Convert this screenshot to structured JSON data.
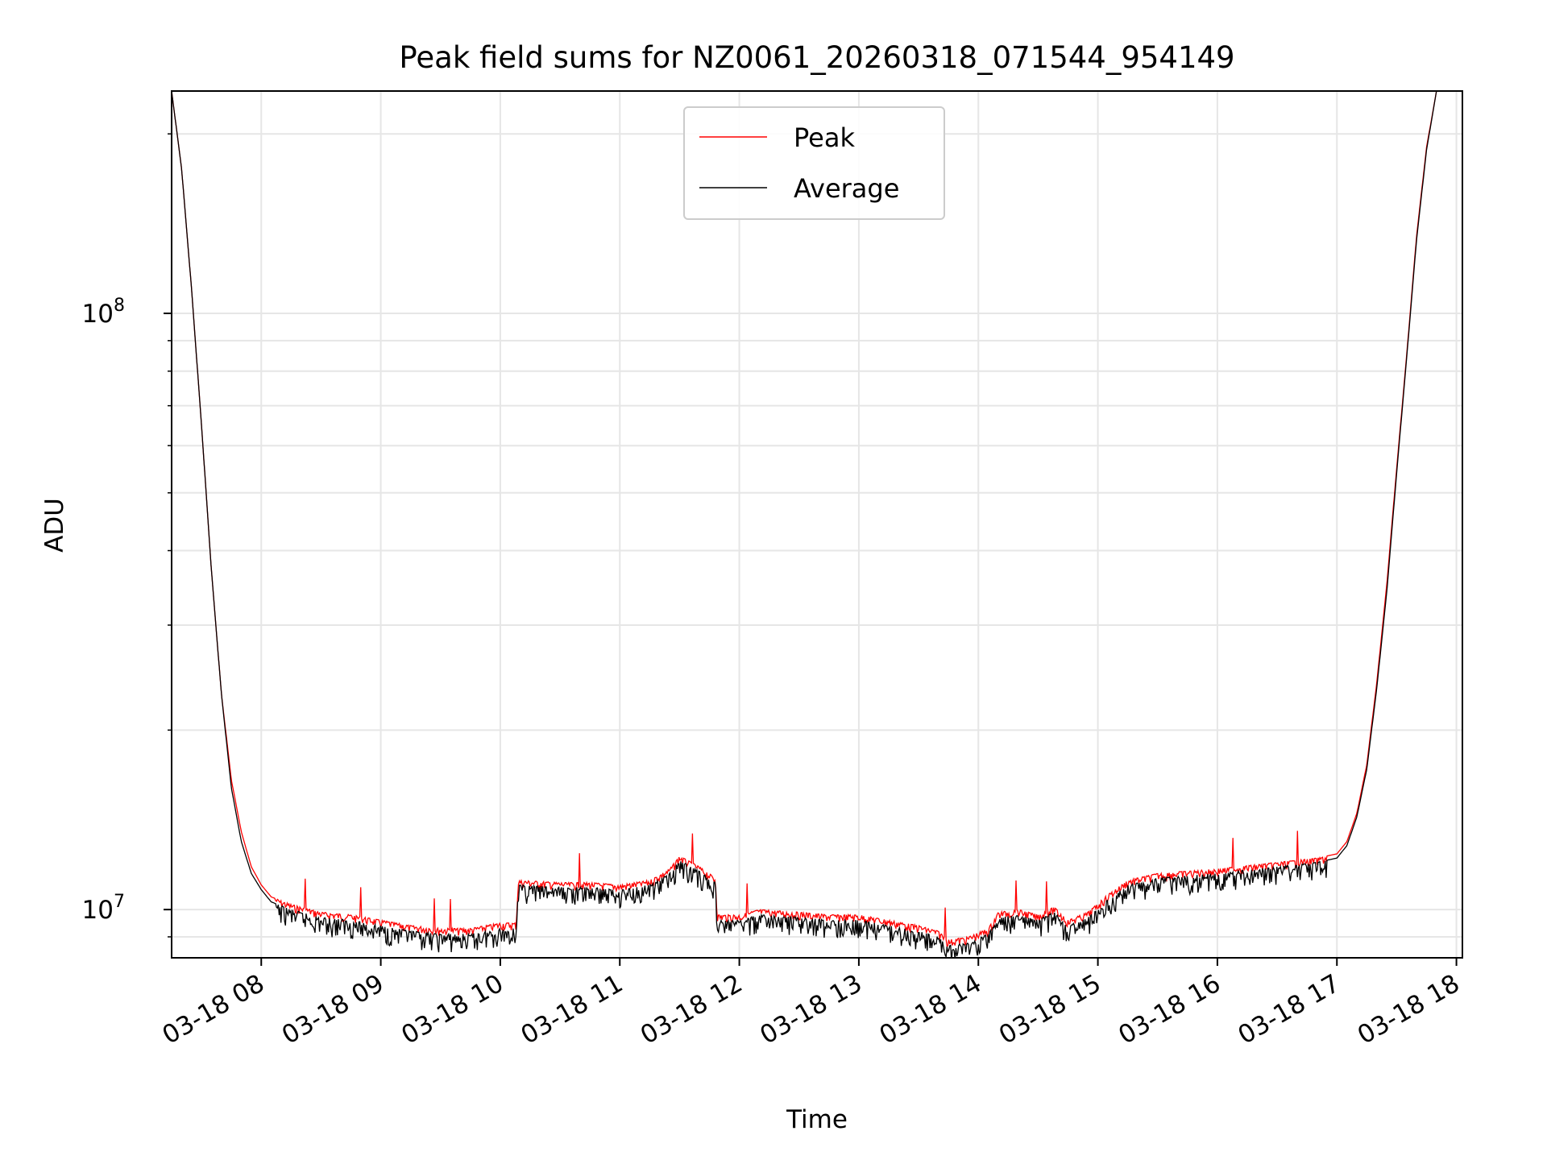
{
  "chart_data": {
    "type": "line",
    "title": "Peak field sums for NZ0061_20260318_071544_954149",
    "xlabel": "Time",
    "ylabel": "ADU",
    "yscale": "log",
    "ylim": [
      8300000,
      236000000
    ],
    "xlim": [
      "03-18 07:15",
      "03-18 18:03"
    ],
    "grid": true,
    "legend_position": "top-center",
    "x_tick_labels": [
      "03-18 08",
      "03-18 09",
      "03-18 10",
      "03-18 11",
      "03-18 12",
      "03-18 13",
      "03-18 14",
      "03-18 15",
      "03-18 16",
      "03-18 17",
      "03-18 18"
    ],
    "y_tick_labels": [
      {
        "value": 10000000,
        "base": "10",
        "exp": "7"
      },
      {
        "value": 100000000,
        "base": "10",
        "exp": "8"
      }
    ],
    "x": [
      "03-18 07:15",
      "03-18 07:20",
      "03-18 07:25",
      "03-18 07:30",
      "03-18 07:35",
      "03-18 07:40",
      "03-18 07:45",
      "03-18 07:50",
      "03-18 07:55",
      "03-18 08:00",
      "03-18 08:05",
      "03-18 08:15",
      "03-18 08:30",
      "03-18 08:45",
      "03-18 09:00",
      "03-18 09:15",
      "03-18 09:30",
      "03-18 09:45",
      "03-18 10:00",
      "03-18 10:08",
      "03-18 10:09",
      "03-18 10:30",
      "03-18 10:45",
      "03-18 11:00",
      "03-18 11:15",
      "03-18 11:25",
      "03-18 11:30",
      "03-18 11:40",
      "03-18 11:48",
      "03-18 11:49",
      "03-18 12:00",
      "03-18 12:10",
      "03-18 12:30",
      "03-18 12:45",
      "03-18 13:00",
      "03-18 13:15",
      "03-18 13:30",
      "03-18 13:40",
      "03-18 13:45",
      "03-18 13:55",
      "03-18 14:05",
      "03-18 14:10",
      "03-18 14:20",
      "03-18 14:30",
      "03-18 14:38",
      "03-18 14:45",
      "03-18 14:55",
      "03-18 15:05",
      "03-18 15:15",
      "03-18 15:30",
      "03-18 16:00",
      "03-18 16:30",
      "03-18 16:50",
      "03-18 17:00",
      "03-18 17:05",
      "03-18 17:10",
      "03-18 17:15",
      "03-18 17:20",
      "03-18 17:25",
      "03-18 17:30",
      "03-18 17:35",
      "03-18 17:40",
      "03-18 17:45",
      "03-18 17:50",
      "03-18 17:55",
      "03-18 18:00"
    ],
    "series": [
      {
        "name": "Peak",
        "color": "#ff0000",
        "values": [
          236000000,
          175000000,
          110000000,
          65000000,
          37000000,
          23000000,
          16500000,
          13500000,
          11800000,
          11000000,
          10500000,
          10200000,
          9900000,
          9800000,
          9600000,
          9400000,
          9300000,
          9300000,
          9500000,
          9500000,
          11200000,
          11100000,
          11100000,
          11000000,
          11200000,
          11700000,
          12300000,
          11800000,
          11300000,
          9800000,
          9800000,
          10000000,
          9900000,
          9800000,
          9800000,
          9600000,
          9400000,
          9200000,
          8900000,
          9000000,
          9300000,
          9900000,
          10000000,
          9800000,
          10100000,
          9600000,
          9900000,
          10600000,
          11200000,
          11500000,
          11700000,
          12000000,
          12200000,
          12400000,
          13000000,
          14500000,
          17500000,
          24000000,
          35000000,
          55000000,
          85000000,
          135000000,
          190000000,
          236000000,
          236000000,
          236000000
        ]
      },
      {
        "name": "Average",
        "color": "#000000",
        "values": [
          236000000,
          175000000,
          110000000,
          65000000,
          37000000,
          23000000,
          16000000,
          13000000,
          11500000,
          10800000,
          10300000,
          10000000,
          9700000,
          9600000,
          9400000,
          9200000,
          9100000,
          9100000,
          9300000,
          9300000,
          11000000,
          10900000,
          10900000,
          10800000,
          11000000,
          11500000,
          12100000,
          11600000,
          11100000,
          9600000,
          9600000,
          9800000,
          9700000,
          9600000,
          9600000,
          9400000,
          9200000,
          9000000,
          8700000,
          8800000,
          9100000,
          9700000,
          9800000,
          9600000,
          9900000,
          9400000,
          9700000,
          10400000,
          11000000,
          11300000,
          11500000,
          11800000,
          12000000,
          12200000,
          12800000,
          14300000,
          17200000,
          23500000,
          34000000,
          54000000,
          84000000,
          133000000,
          188000000,
          236000000,
          236000000,
          236000000
        ]
      }
    ]
  }
}
